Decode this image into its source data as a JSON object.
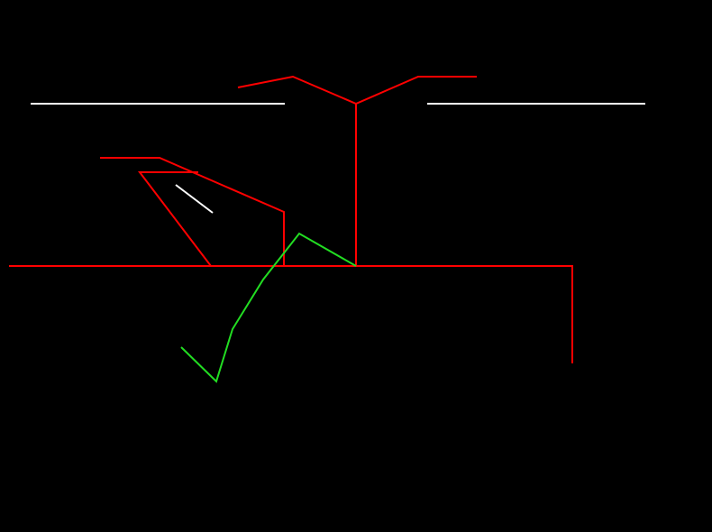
{
  "background": "#000000",
  "colors": {
    "red": "#ff0000",
    "green": "#22dd22",
    "white": "#ffffff"
  }
}
